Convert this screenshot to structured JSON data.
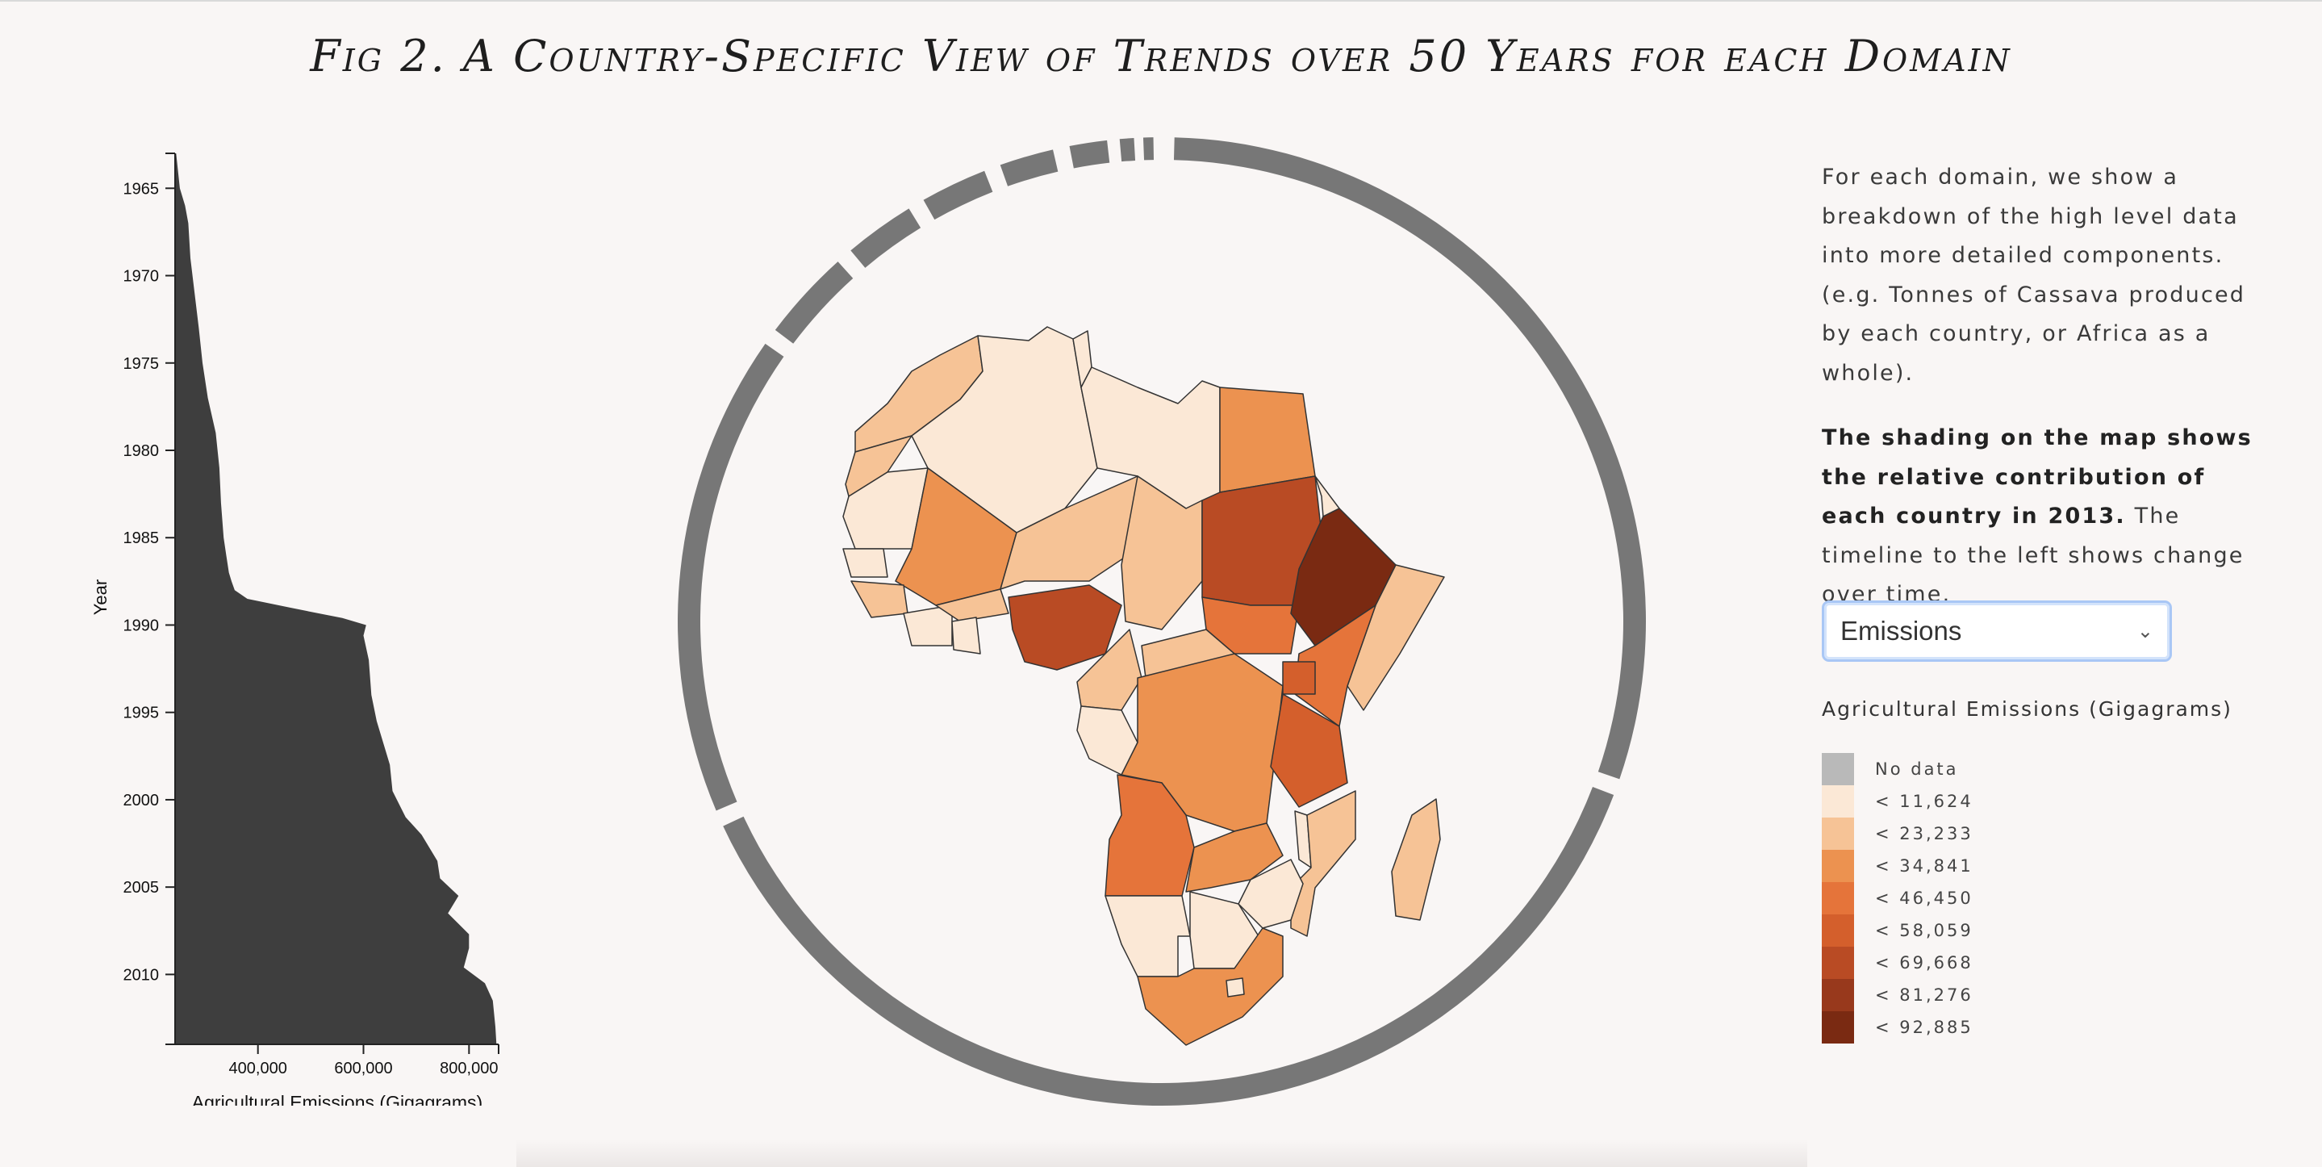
{
  "title": "Fig 2. A Country-Specific View of Trends over 50 Years for each Domain",
  "chart_data": [
    {
      "type": "area",
      "orientation": "vertical",
      "ylabel": "Year",
      "xlabel": "Agricultural Emissions (Gigagrams)",
      "y_ticks": [
        "1965",
        "1970",
        "1975",
        "1980",
        "1985",
        "1990",
        "1995",
        "2000",
        "2005",
        "2010"
      ],
      "x_ticks": [
        "400,000",
        "600,000",
        "800,000"
      ],
      "ylim": [
        1963,
        2014
      ],
      "xlim": [
        243000,
        853000
      ],
      "fill_color": "#3e3e3e",
      "points": [
        [
          1963,
          245000
        ],
        [
          1965,
          252000
        ],
        [
          1966,
          262000
        ],
        [
          1967,
          268000
        ],
        [
          1969,
          272000
        ],
        [
          1971,
          280000
        ],
        [
          1973,
          288000
        ],
        [
          1975,
          295000
        ],
        [
          1977,
          305000
        ],
        [
          1979,
          320000
        ],
        [
          1981,
          327000
        ],
        [
          1983,
          330000
        ],
        [
          1985,
          335000
        ],
        [
          1986,
          340000
        ],
        [
          1987,
          345000
        ],
        [
          1987.5,
          350000
        ],
        [
          1988,
          356000
        ],
        [
          1988.5,
          380000
        ],
        [
          1989,
          460000
        ],
        [
          1989.6,
          560000
        ],
        [
          1990,
          605000
        ],
        [
          1990.6,
          600000
        ],
        [
          1992,
          610000
        ],
        [
          1994,
          615000
        ],
        [
          1995.5,
          625000
        ],
        [
          1997,
          640000
        ],
        [
          1998,
          650000
        ],
        [
          1999.5,
          655000
        ],
        [
          2001,
          680000
        ],
        [
          2002,
          710000
        ],
        [
          2003.5,
          740000
        ],
        [
          2004.5,
          745000
        ],
        [
          2005.5,
          780000
        ],
        [
          2006.5,
          760000
        ],
        [
          2007.7,
          800000
        ],
        [
          2008.5,
          800000
        ],
        [
          2009.6,
          790000
        ],
        [
          2010.5,
          830000
        ],
        [
          2011.5,
          845000
        ],
        [
          2013,
          850000
        ],
        [
          2014,
          852000
        ]
      ]
    },
    {
      "type": "choropleth",
      "year": "2013",
      "legend_title": "Agricultural Emissions (Gigagrams)",
      "legend": [
        {
          "label": "No data",
          "color": "#b9b9b9"
        },
        {
          "label": "< 11,624",
          "color": "#fbe8d6"
        },
        {
          "label": "< 23,233",
          "color": "#f6c396"
        },
        {
          "label": "< 34,841",
          "color": "#ec9250"
        },
        {
          "label": "< 46,450",
          "color": "#e5743a"
        },
        {
          "label": "< 58,059",
          "color": "#d45f2c"
        },
        {
          "label": "< 69,668",
          "color": "#b94b24"
        },
        {
          "label": "< 81,276",
          "color": "#98391c"
        },
        {
          "label": "< 92,885",
          "color": "#7a2a12"
        }
      ],
      "ring_color": "#777777",
      "ring_segments_deg": [
        [
          1.5,
          109
        ],
        [
          111,
          245
        ],
        [
          247,
          305
        ],
        [
          307,
          318
        ],
        [
          320,
          328.5
        ],
        [
          330.5,
          338.5
        ],
        [
          340.5,
          347
        ],
        [
          349,
          353.5
        ],
        [
          355,
          356.7
        ],
        [
          357.8,
          359
        ]
      ]
    }
  ],
  "side_panel": {
    "para1": "For each domain, we show a breakdown of the high level data into more detailed components. (e.g. Tonnes of Cassava produced by each country, or Africa as a whole).",
    "para2_bold": "The shading on the map shows the relative contribution of each country in 2013.",
    "para2_rest": " The timeline to the left shows change over time.",
    "select_value": "Emissions",
    "legend_title": "Agricultural Emissions (Gigagrams)"
  },
  "icons": {
    "select": "chevron-down-icon"
  }
}
